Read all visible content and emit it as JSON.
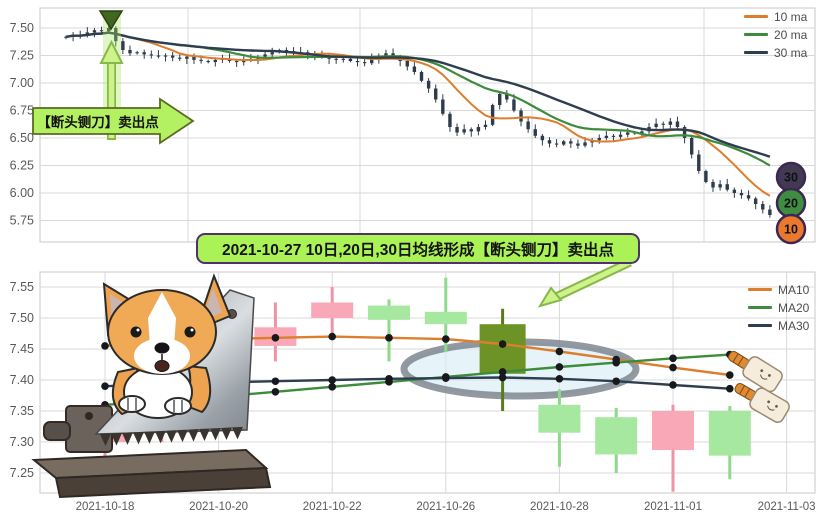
{
  "colors": {
    "ma10": "#dd7e2e",
    "ma20": "#3c8c3c",
    "ma30": "#2e3d4f",
    "candle_dark": "#2f3b4d",
    "up_body": "#f8a8b6",
    "up_wick": "#ef93a6",
    "down_body": "#a6e8a0",
    "down_wick": "#8fd98a",
    "sell_body": "#6d9226",
    "sell_wick": "#5a7a1c",
    "badge_border": "#3d2752",
    "callout_bg": "#aaf256",
    "callout_border": "#503070",
    "arrow_green": "#cdf38a",
    "arrow_edge": "#86b84a",
    "grid": "#d9d9d9",
    "plot_border": "#c8c8c8",
    "axis_text": "#595959"
  },
  "top_chart": {
    "legend": [
      {
        "label": "10 ma",
        "color": "#dd7e2e"
      },
      {
        "label": "20 ma",
        "color": "#3c8c3c"
      },
      {
        "label": "30 ma",
        "color": "#2e3d4f"
      }
    ],
    "y_ticks": [
      7.5,
      7.25,
      7.0,
      6.75,
      6.5,
      6.25,
      6.0,
      5.75
    ],
    "badges": [
      {
        "label": "30",
        "color": "#423a52"
      },
      {
        "label": "20",
        "color": "#3e8e41"
      },
      {
        "label": "10",
        "color": "#e9792f"
      }
    ],
    "annotation": "【断头铡刀】卖出点",
    "chart_data": {
      "type": "candlestick",
      "ylabel": "price",
      "ylim": [
        5.65,
        7.68
      ],
      "grid": true,
      "legend_position": "top-right",
      "ma_windows": [
        10,
        20,
        30
      ],
      "closes": [
        7.42,
        7.44,
        7.43,
        7.46,
        7.48,
        7.47,
        7.5,
        7.38,
        7.3,
        7.27,
        7.28,
        7.26,
        7.25,
        7.24,
        7.25,
        7.23,
        7.22,
        7.24,
        7.21,
        7.2,
        7.19,
        7.21,
        7.22,
        7.2,
        7.19,
        7.21,
        7.22,
        7.24,
        7.26,
        7.28,
        7.3,
        7.29,
        7.27,
        7.28,
        7.26,
        7.24,
        7.25,
        7.22,
        7.21,
        7.22,
        7.2,
        7.19,
        7.18,
        7.22,
        7.25,
        7.27,
        7.24,
        7.2,
        7.15,
        7.1,
        7.02,
        6.95,
        6.85,
        6.72,
        6.6,
        6.55,
        6.58,
        6.56,
        6.6,
        6.62,
        6.8,
        6.9,
        6.85,
        6.75,
        6.65,
        6.58,
        6.52,
        6.48,
        6.45,
        6.44,
        6.47,
        6.45,
        6.43,
        6.46,
        6.48,
        6.5,
        6.52,
        6.51,
        6.53,
        6.55,
        6.54,
        6.56,
        6.6,
        6.63,
        6.62,
        6.65,
        6.6,
        6.5,
        6.35,
        6.2,
        6.1,
        6.05,
        6.08,
        6.03,
        6.0,
        5.98,
        5.95,
        5.9,
        5.85,
        5.8
      ],
      "sell_point_index": 6
    }
  },
  "callout": {
    "text": "2021-10-27 10日,20日,30日均线形成【断头铡刀】卖出点"
  },
  "bottom_chart": {
    "legend": [
      {
        "label": "MA10",
        "color": "#dd7e2e"
      },
      {
        "label": "MA20",
        "color": "#3c8c3c"
      },
      {
        "label": "MA30",
        "color": "#2e3d4f"
      }
    ],
    "y_ticks": [
      7.55,
      7.5,
      7.45,
      7.4,
      7.35,
      7.3,
      7.25
    ],
    "x_ticks": [
      "2021-10-18",
      "2021-10-20",
      "2021-10-22",
      "2021-10-26",
      "2021-10-28",
      "2021-11-01",
      "2021-11-03"
    ],
    "chart_data": {
      "type": "candlestick",
      "ylim": [
        7.22,
        7.58
      ],
      "grid": true,
      "legend_position": "top-right",
      "highlight_date": "2021-10-27",
      "dates": [
        "2021-10-18",
        "2021-10-19",
        "2021-10-20",
        "2021-10-21",
        "2021-10-22",
        "2021-10-25",
        "2021-10-26",
        "2021-10-27",
        "2021-10-28",
        "2021-10-29",
        "2021-11-01",
        "2021-11-02"
      ],
      "candles": [
        {
          "o": 7.3,
          "h": 7.33,
          "l": 7.27,
          "c": 7.32,
          "dir": "up"
        },
        {
          "o": 7.32,
          "h": 7.38,
          "l": 7.3,
          "c": 7.36,
          "dir": "up"
        },
        {
          "o": 7.36,
          "h": 7.43,
          "l": 7.34,
          "c": 7.42,
          "dir": "up"
        },
        {
          "o": 7.455,
          "h": 7.525,
          "l": 7.43,
          "c": 7.485,
          "dir": "up"
        },
        {
          "o": 7.5,
          "h": 7.55,
          "l": 7.475,
          "c": 7.525,
          "dir": "up"
        },
        {
          "o": 7.52,
          "h": 7.53,
          "l": 7.43,
          "c": 7.497,
          "dir": "down"
        },
        {
          "o": 7.51,
          "h": 7.565,
          "l": 7.445,
          "c": 7.49,
          "dir": "down"
        },
        {
          "o": 7.49,
          "h": 7.515,
          "l": 7.35,
          "c": 7.41,
          "dir": "sell"
        },
        {
          "o": 7.36,
          "h": 7.385,
          "l": 7.26,
          "c": 7.315,
          "dir": "down"
        },
        {
          "o": 7.34,
          "h": 7.355,
          "l": 7.25,
          "c": 7.28,
          "dir": "down"
        },
        {
          "o": 7.287,
          "h": 7.36,
          "l": 7.22,
          "c": 7.35,
          "dir": "up"
        },
        {
          "o": 7.35,
          "h": 7.358,
          "l": 7.24,
          "c": 7.278,
          "dir": "down"
        }
      ],
      "ma10": [
        7.455,
        7.462,
        7.466,
        7.468,
        7.47,
        7.468,
        7.466,
        7.458,
        7.446,
        7.433,
        7.42,
        7.408
      ],
      "ma20": [
        7.36,
        7.366,
        7.373,
        7.381,
        7.389,
        7.397,
        7.405,
        7.413,
        7.421,
        7.428,
        7.435,
        7.441
      ],
      "ma30": [
        7.39,
        7.393,
        7.396,
        7.398,
        7.4,
        7.402,
        7.403,
        7.404,
        7.402,
        7.398,
        7.392,
        7.386
      ]
    }
  }
}
